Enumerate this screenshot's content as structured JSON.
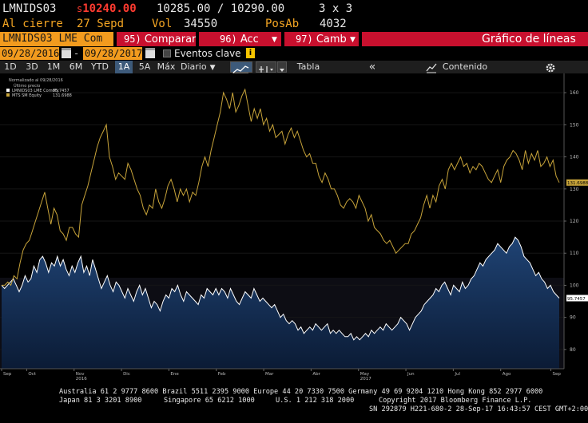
{
  "header": {
    "ticker": "LMNIDS03",
    "price_prefix": "s",
    "price": "10240.00",
    "bid": "10285.00",
    "slash": "/",
    "ask": "10290.00",
    "size": "3 x 3",
    "close_label": "Al cierre",
    "close_date": "27 Sepd",
    "vol_label": "Vol",
    "vol_value": "34550",
    "posab_label": "PosAb",
    "posab_value": "4032"
  },
  "command_bar": {
    "security": "LMNIDS03 LME Com",
    "compare_num": "95)",
    "compare_label": "Comparar",
    "actions_num": "96)",
    "actions_label": "Acc",
    "change_num": "97)",
    "change_label": "Camb",
    "chart_title": "Gráfico de líneas"
  },
  "date_range": {
    "start": "09/28/2016",
    "dash": "-",
    "end": "09/28/2017",
    "events_label": "Eventos clave",
    "info_glyph": "i"
  },
  "toolbar": {
    "ranges": [
      "1D",
      "3D",
      "1M",
      "6M",
      "YTD",
      "1A",
      "5A",
      "Máx"
    ],
    "selected_range": "1A",
    "frequency": "Diario",
    "table_label": "Tabla",
    "collapse_glyph": "«",
    "content_label": "Contenido"
  },
  "colors": {
    "accent_red": "#c8102e",
    "amber": "#f29b1e",
    "gold_series": "#c8a43a",
    "white_series": "#ffffff",
    "area_fill_top": "#1c3a66",
    "area_fill_bottom": "#0a1a33"
  },
  "chart_data": {
    "type": "line",
    "legend": {
      "title_line1": "Normalizado al 09/28/2016",
      "title_line2": "Último precio",
      "entries": [
        {
          "name": "LMNIDS03 LME Comdty",
          "value": "95.7457"
        },
        {
          "name": "MTS SM Equity",
          "value": "131.6988"
        }
      ]
    },
    "y_ticks": [
      80,
      90,
      100,
      110,
      120,
      130,
      140,
      150,
      160
    ],
    "ylim": [
      74,
      166
    ],
    "x_labels": [
      {
        "label": "Sep",
        "t": 0.0
      },
      {
        "label": "Oct",
        "t": 0.045
      },
      {
        "label": "Nov\n2016",
        "t": 0.13
      },
      {
        "label": "Dic",
        "t": 0.215
      },
      {
        "label": "Ene",
        "t": 0.3
      },
      {
        "label": "Feb",
        "t": 0.385
      },
      {
        "label": "Mar",
        "t": 0.47
      },
      {
        "label": "Abr",
        "t": 0.555
      },
      {
        "label": "May\n2017",
        "t": 0.64
      },
      {
        "label": "Jun",
        "t": 0.725
      },
      {
        "label": "Jul",
        "t": 0.81
      },
      {
        "label": "Ago",
        "t": 0.895
      },
      {
        "label": "Sep",
        "t": 0.985
      }
    ],
    "last_labels": {
      "gold": "131.6988",
      "white": "95.7457"
    },
    "series": [
      {
        "name": "MTS SM Equity",
        "values": [
          100,
          100,
          101,
          100,
          103,
          102,
          107,
          111,
          113,
          114,
          117,
          120,
          123,
          126,
          129,
          124,
          119,
          124,
          122,
          117,
          116,
          114,
          118,
          118,
          116,
          115,
          125,
          128,
          131,
          135,
          139,
          143,
          146,
          148,
          150,
          140,
          137,
          133,
          135,
          134,
          133,
          138,
          136,
          133,
          130,
          128,
          124,
          122,
          125,
          124,
          130,
          126,
          124,
          127,
          131,
          133,
          130,
          126,
          130,
          128,
          130,
          126,
          129,
          128,
          132,
          137,
          140,
          137,
          142,
          146,
          150,
          154,
          160,
          158,
          155,
          160,
          154,
          156,
          159,
          161,
          156,
          151,
          155,
          152,
          155,
          150,
          152,
          148,
          150,
          146,
          147,
          148,
          144,
          147,
          149,
          146,
          148,
          145,
          142,
          140,
          141,
          138,
          138,
          134,
          132,
          135,
          133,
          130,
          130,
          128,
          125,
          124,
          126,
          127,
          126,
          124,
          128,
          126,
          124,
          120,
          122,
          118,
          117,
          116,
          114,
          113,
          114,
          112,
          110,
          111,
          112,
          113,
          113,
          116,
          117,
          119,
          121,
          125,
          128,
          124,
          128,
          126,
          131,
          133,
          130,
          136,
          138,
          136,
          138,
          140,
          137,
          138,
          135,
          137,
          136,
          138,
          137,
          135,
          133,
          132,
          134,
          136,
          132,
          137,
          139,
          140,
          142,
          141,
          139,
          136,
          142,
          138,
          141,
          139,
          142,
          137,
          138,
          140,
          137,
          139,
          134,
          132
        ]
      },
      {
        "name": "LMNIDS03 LME Comdty",
        "values": [
          100,
          99,
          100,
          101,
          102,
          100,
          98,
          100,
          103,
          101,
          102,
          106,
          104,
          108,
          109,
          107,
          104,
          107,
          106,
          109,
          106,
          108,
          105,
          103,
          106,
          104,
          107,
          109,
          104,
          106,
          103,
          108,
          105,
          102,
          99,
          101,
          103,
          100,
          98,
          101,
          100,
          98,
          96,
          99,
          97,
          95,
          98,
          100,
          97,
          99,
          96,
          93,
          95,
          94,
          92,
          95,
          97,
          96,
          99,
          98,
          100,
          97,
          95,
          98,
          97,
          96,
          95,
          94,
          97,
          96,
          99,
          98,
          97,
          99,
          97,
          99,
          98,
          96,
          99,
          97,
          95,
          94,
          96,
          98,
          97,
          96,
          99,
          97,
          95,
          96,
          95,
          94,
          93,
          94,
          92,
          90,
          91,
          89,
          88,
          89,
          88,
          86,
          87,
          85,
          86,
          87,
          86,
          88,
          87,
          86,
          87,
          88,
          85,
          86,
          85,
          86,
          85,
          84,
          84,
          85,
          83,
          84,
          83,
          84,
          85,
          84,
          86,
          85,
          86,
          87,
          86,
          88,
          87,
          86,
          87,
          88,
          90,
          89,
          88,
          86,
          88,
          90,
          91,
          92,
          94,
          95,
          96,
          97,
          99,
          98,
          100,
          101,
          99,
          97,
          100,
          99,
          98,
          101,
          99,
          100,
          102,
          103,
          105,
          107,
          106,
          108,
          109,
          110,
          111,
          113,
          112,
          111,
          110,
          112,
          113,
          115,
          114,
          112,
          109,
          108,
          107,
          105,
          103,
          104,
          102,
          101,
          99,
          100,
          98,
          97,
          96
        ]
      }
    ]
  },
  "footer": {
    "line1": "Australia 61 2 9777 8600 Brazil 5511 2395 9000 Europe 44 20 7330 7500 Germany 49 69 9204 1210 Hong Kong 852 2977 6000",
    "line2a": "Japan 81 3 3201 8900",
    "line2b": "Singapore 65 6212 1000",
    "line2c": "U.S. 1 212 318 2000",
    "line2d": "Copyright 2017 Bloomberg Finance L.P.",
    "line3": "SN 292879 H221-680-2 28-Sep-17 16:43:57 CEST GMT+2:00"
  }
}
